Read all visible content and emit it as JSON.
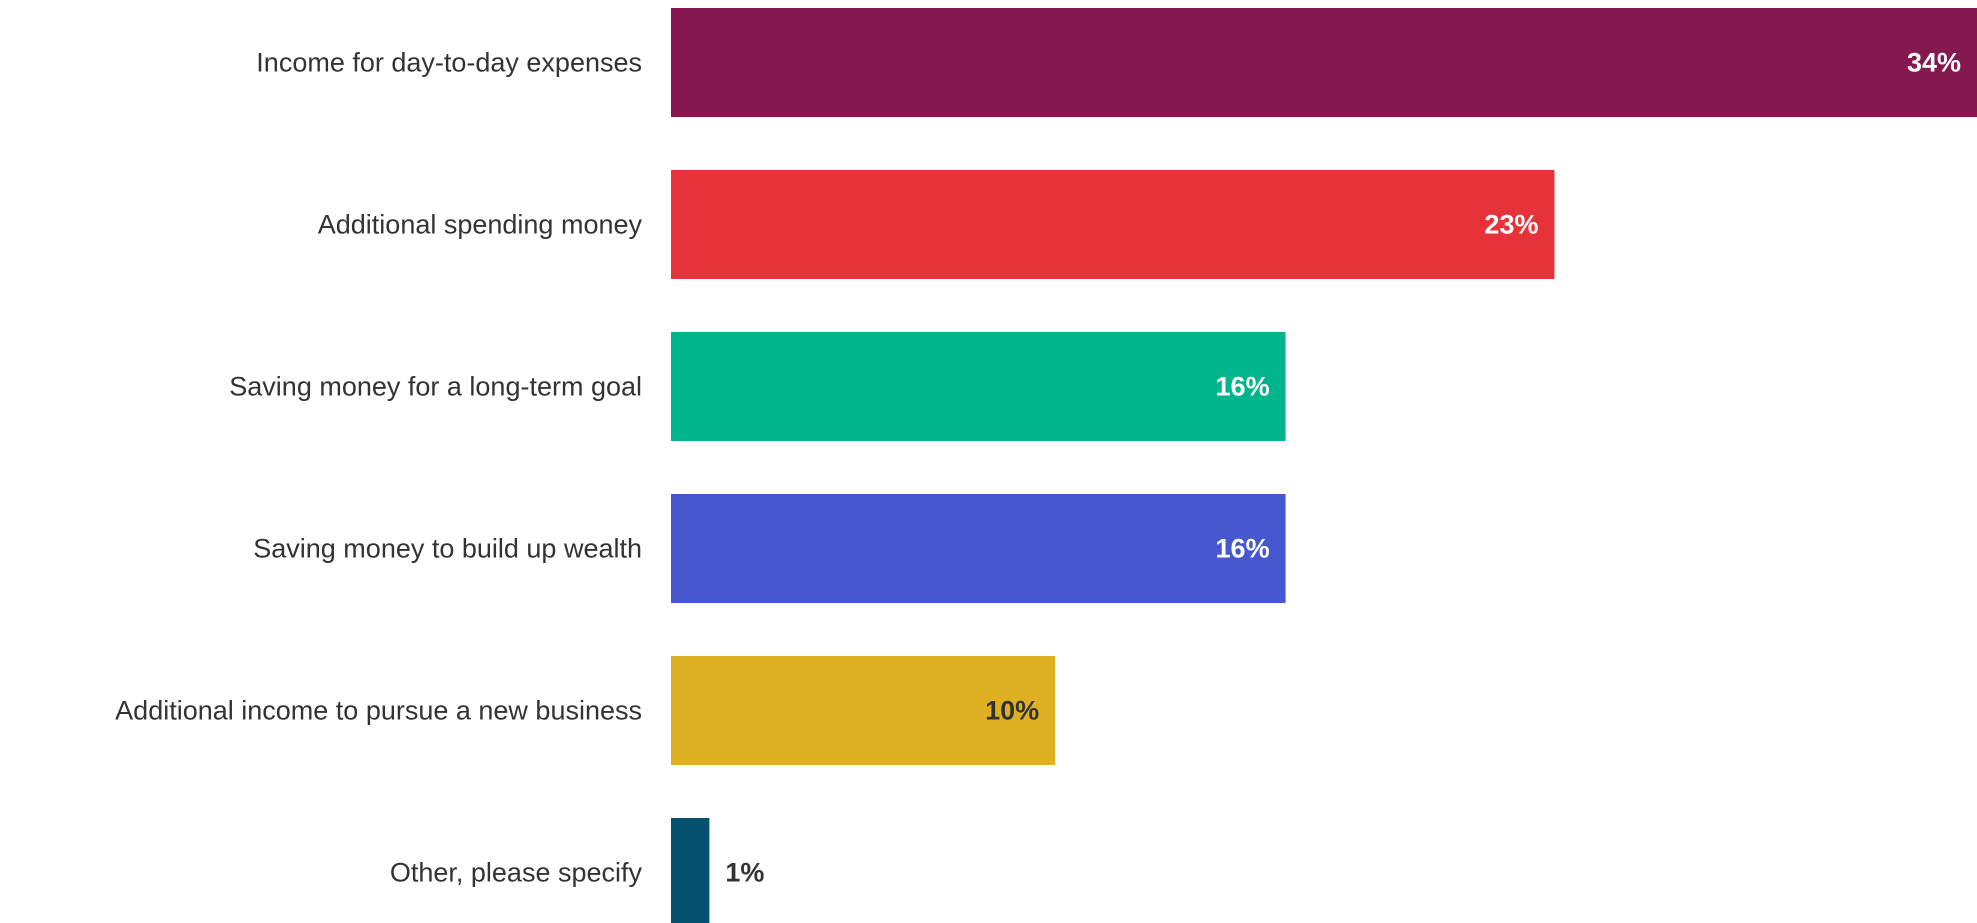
{
  "chart_data": {
    "type": "bar",
    "orientation": "horizontal",
    "categories": [
      "Income for day-to-day expenses",
      "Additional spending money",
      "Saving money for a long-term goal",
      "Saving money to build up wealth",
      "Additional income to pursue a new business",
      "Other, please specify"
    ],
    "values": [
      34,
      23,
      16,
      16,
      10,
      1
    ],
    "value_labels": [
      "34%",
      "23%",
      "16%",
      "16%",
      "10%",
      "1%"
    ],
    "bar_colors": [
      "#85184e",
      "#e8323a",
      "#00b58b",
      "#4657cf",
      "#e0b023",
      "#04506f"
    ],
    "value_label_colors": [
      "#ffffff",
      "#ffffff",
      "#ffffff",
      "#ffffff",
      "#333333",
      "#333333"
    ],
    "value_label_position": [
      "inside",
      "inside",
      "inside",
      "inside",
      "inside",
      "outside"
    ],
    "xlim": [
      0,
      34
    ],
    "grid": false,
    "legend": "none"
  }
}
